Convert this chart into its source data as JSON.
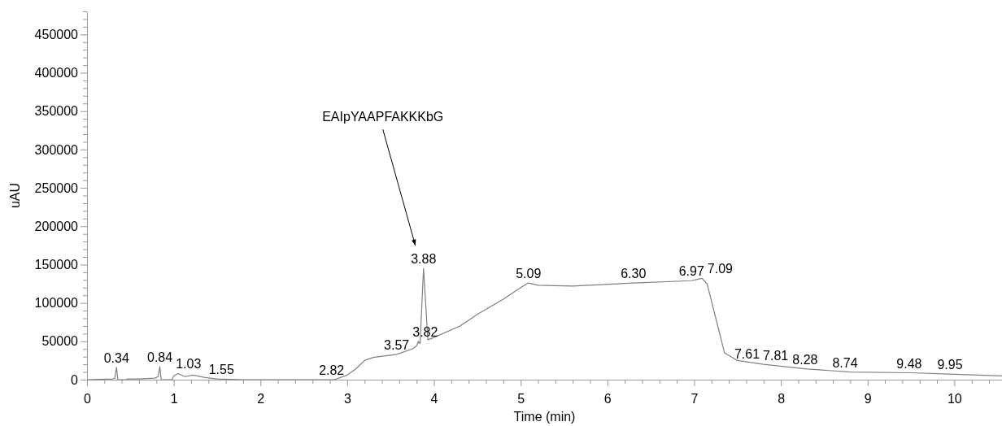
{
  "chart_data": {
    "type": "line",
    "xlabel": "Time (min)",
    "ylabel": "uAU",
    "xlim": [
      0,
      10.55
    ],
    "ylim": [
      0,
      480000
    ],
    "xticks": [
      0,
      {
        "value": 0.2,
        "label": null
      },
      {
        "value": 0.4,
        "label": null
      },
      {
        "value": 0.6,
        "label": null
      },
      {
        "value": 0.8,
        "label": null
      },
      1,
      {
        "value": 1.2,
        "label": null
      },
      {
        "value": 1.4,
        "label": null
      },
      {
        "value": 1.6,
        "label": null
      },
      {
        "value": 1.8,
        "label": null
      },
      2,
      {
        "value": 2.2,
        "label": null
      },
      {
        "value": 2.4,
        "label": null
      },
      {
        "value": 2.6,
        "label": null
      },
      {
        "value": 2.8,
        "label": null
      },
      3,
      {
        "value": 3.2,
        "label": null
      },
      {
        "value": 3.4,
        "label": null
      },
      {
        "value": 3.6,
        "label": null
      },
      {
        "value": 3.8,
        "label": null
      },
      4,
      {
        "value": 4.2,
        "label": null
      },
      {
        "value": 4.4,
        "label": null
      },
      {
        "value": 4.6,
        "label": null
      },
      {
        "value": 4.8,
        "label": null
      },
      5,
      {
        "value": 5.2,
        "label": null
      },
      {
        "value": 5.4,
        "label": null
      },
      {
        "value": 5.6,
        "label": null
      },
      {
        "value": 5.8,
        "label": null
      },
      6,
      {
        "value": 6.2,
        "label": null
      },
      {
        "value": 6.4,
        "label": null
      },
      {
        "value": 6.6,
        "label": null
      },
      {
        "value": 6.8,
        "label": null
      },
      7,
      {
        "value": 7.2,
        "label": null
      },
      {
        "value": 7.4,
        "label": null
      },
      {
        "value": 7.6,
        "label": null
      },
      {
        "value": 7.8,
        "label": null
      },
      8,
      {
        "value": 8.2,
        "label": null
      },
      {
        "value": 8.4,
        "label": null
      },
      {
        "value": 8.6,
        "label": null
      },
      {
        "value": 8.8,
        "label": null
      },
      9,
      {
        "value": 9.2,
        "label": null
      },
      {
        "value": 9.4,
        "label": null
      },
      {
        "value": 9.6,
        "label": null
      },
      {
        "value": 9.8,
        "label": null
      },
      10,
      {
        "value": 10.2,
        "label": null
      },
      {
        "value": 10.4,
        "label": null
      }
    ],
    "yticks": [
      0,
      {
        "value": 10000,
        "label": null
      },
      {
        "value": 20000,
        "label": null
      },
      {
        "value": 30000,
        "label": null
      },
      {
        "value": 40000,
        "label": null
      },
      50000,
      {
        "value": 60000,
        "label": null
      },
      {
        "value": 70000,
        "label": null
      },
      {
        "value": 80000,
        "label": null
      },
      {
        "value": 90000,
        "label": null
      },
      100000,
      {
        "value": 110000,
        "label": null
      },
      {
        "value": 120000,
        "label": null
      },
      {
        "value": 130000,
        "label": null
      },
      {
        "value": 140000,
        "label": null
      },
      150000,
      {
        "value": 160000,
        "label": null
      },
      {
        "value": 170000,
        "label": null
      },
      {
        "value": 180000,
        "label": null
      },
      {
        "value": 190000,
        "label": null
      },
      200000,
      {
        "value": 210000,
        "label": null
      },
      {
        "value": 220000,
        "label": null
      },
      {
        "value": 230000,
        "label": null
      },
      {
        "value": 240000,
        "label": null
      },
      250000,
      {
        "value": 260000,
        "label": null
      },
      {
        "value": 270000,
        "label": null
      },
      {
        "value": 280000,
        "label": null
      },
      {
        "value": 290000,
        "label": null
      },
      300000,
      {
        "value": 310000,
        "label": null
      },
      {
        "value": 320000,
        "label": null
      },
      {
        "value": 330000,
        "label": null
      },
      {
        "value": 340000,
        "label": null
      },
      350000,
      {
        "value": 360000,
        "label": null
      },
      {
        "value": 370000,
        "label": null
      },
      {
        "value": 380000,
        "label": null
      },
      {
        "value": 390000,
        "label": null
      },
      400000,
      {
        "value": 410000,
        "label": null
      },
      {
        "value": 420000,
        "label": null
      },
      {
        "value": 430000,
        "label": null
      },
      {
        "value": 440000,
        "label": null
      },
      450000,
      {
        "value": 460000,
        "label": null
      },
      {
        "value": 470000,
        "label": null
      },
      {
        "value": 480000,
        "label": null
      }
    ],
    "grid": false,
    "marker": "none",
    "line_style": "solid",
    "series": [
      {
        "color": "#808080",
        "x": [
          0,
          0.3,
          0.32,
          0.34,
          0.355,
          0.37,
          0.45,
          0.47,
          0.6,
          0.78,
          0.82,
          0.84,
          0.855,
          0.98,
          1.0,
          1.05,
          1.13,
          1.22,
          1.35,
          1.5,
          1.8,
          2.5,
          2.85,
          3.0,
          3.1,
          3.2,
          3.3,
          3.57,
          3.75,
          3.8,
          3.82,
          3.84,
          3.88,
          3.93,
          4.0,
          4.3,
          4.5,
          4.8,
          5.0,
          5.09,
          5.2,
          5.6,
          6.3,
          6.97,
          7.09,
          7.15,
          7.25,
          7.35,
          7.5,
          7.8,
          8.3,
          8.8,
          9.5,
          10.0,
          10.55
        ],
        "values": [
          0,
          1000,
          2000,
          16000,
          0,
          0,
          0,
          1000,
          1000,
          2000,
          4000,
          17000,
          0,
          0,
          5000,
          8000,
          4000,
          6000,
          3000,
          1000,
          0,
          0,
          0,
          6000,
          14000,
          25000,
          29000,
          33000,
          40000,
          44000,
          50000,
          47000,
          145000,
          52000,
          55000,
          70000,
          85000,
          105000,
          120000,
          126000,
          123000,
          122000,
          126000,
          129000,
          132000,
          125000,
          80000,
          35000,
          25000,
          20000,
          14000,
          10000,
          9000,
          7000,
          5000
        ]
      }
    ],
    "annotations": [
      {
        "text": "0.34",
        "x": 0.34,
        "y": 16000
      },
      {
        "text": "0.84",
        "x": 0.84,
        "y": 17000
      },
      {
        "text": "1.03",
        "x": 1.03,
        "y": 8000
      },
      {
        "text": "1.55",
        "x": 1.55,
        "y": 1000
      },
      {
        "text": "2.82",
        "x": 2.82,
        "y": 0
      },
      {
        "text": "3.57",
        "x": 3.57,
        "y": 33000
      },
      {
        "text": "3.82",
        "x": 3.82,
        "y": 50000
      },
      {
        "text": "3.88",
        "x": 3.88,
        "y": 145000
      },
      {
        "text": "5.09",
        "x": 5.09,
        "y": 126000
      },
      {
        "text": "6.30",
        "x": 6.3,
        "y": 126000
      },
      {
        "text": "6.97",
        "x": 6.97,
        "y": 129000
      },
      {
        "text": "7.09",
        "x": 7.09,
        "y": 132000
      },
      {
        "text": "7.61",
        "x": 7.61,
        "y": 21000
      },
      {
        "text": "7.81",
        "x": 7.81,
        "y": 19000
      },
      {
        "text": "8.28",
        "x": 8.28,
        "y": 14000
      },
      {
        "text": "8.74",
        "x": 8.74,
        "y": 10000
      },
      {
        "text": "9.48",
        "x": 9.48,
        "y": 9000
      },
      {
        "text": "9.95",
        "x": 9.95,
        "y": 7000
      },
      "EAIpYAAPFAKKKbG"
    ]
  }
}
